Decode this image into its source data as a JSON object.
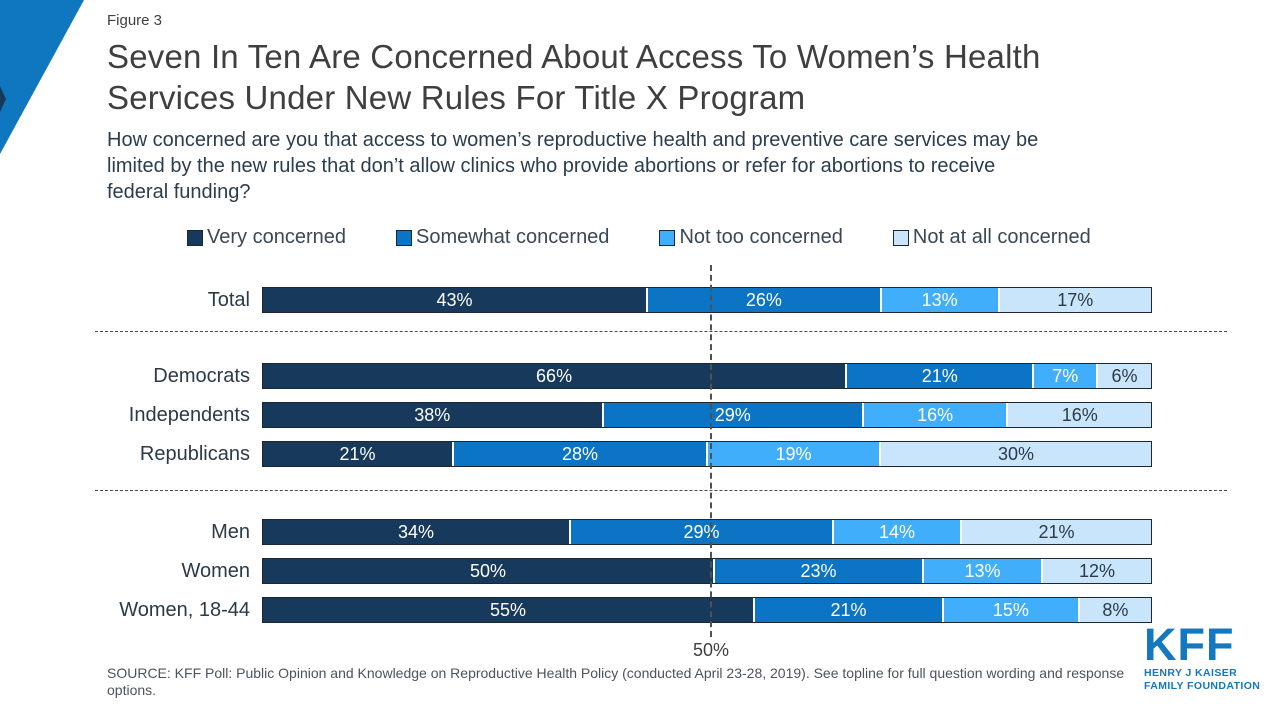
{
  "figure_label": "Figure 3",
  "header": {
    "title_lines": [
      "Seven In Ten Are Concerned About Access To Women’s Health",
      "Services Under New Rules For Title X Program"
    ],
    "subtitle_lines": [
      "How concerned are you that access to women’s reproductive health and preventive care services may be",
      "limited by the new rules that don’t allow clinics who provide abortions or refer for abortions to receive",
      "federal funding?"
    ]
  },
  "chart_data": {
    "type": "bar",
    "orientation": "horizontal_stacked",
    "xlim": [
      0,
      100
    ],
    "legend": [
      "Very concerned",
      "Somewhat concerned",
      "Not too concerned",
      "Not at all concerned"
    ],
    "series_colors": [
      "#17395C",
      "#0B74C4",
      "#41AEFC",
      "#C9E5FC"
    ],
    "categories": [
      "Total",
      "Democrats",
      "Independents",
      "Republicans",
      "Men",
      "Women",
      "Women, 18-44"
    ],
    "groups": [
      [
        "Total"
      ],
      [
        "Democrats",
        "Independents",
        "Republicans"
      ],
      [
        "Men",
        "Women",
        "Women, 18-44"
      ]
    ],
    "series": [
      {
        "name": "Very concerned",
        "values": [
          43,
          66,
          38,
          21,
          34,
          50,
          55
        ]
      },
      {
        "name": "Somewhat concerned",
        "values": [
          26,
          21,
          29,
          28,
          29,
          23,
          21
        ]
      },
      {
        "name": "Not too concerned",
        "values": [
          13,
          7,
          16,
          19,
          14,
          13,
          15
        ]
      },
      {
        "name": "Not at all concerned",
        "values": [
          17,
          6,
          16,
          30,
          21,
          12,
          8
        ]
      }
    ],
    "value_suffix": "%",
    "reference_line": {
      "value": 50,
      "label": "50%"
    },
    "grid": "off",
    "legend_position": "top"
  },
  "source_text": "SOURCE: KFF Poll: Public Opinion and Knowledge on Reproductive Health Policy (conducted April 23-28, 2019). See topline for full question wording and response options.",
  "logo": {
    "acronym": "KFF",
    "line1": "HENRY J KAISER",
    "line2": "FAMILY FOUNDATION"
  },
  "colors": {
    "logo_blue": "#1478BF",
    "corner_triangle_blue": "#0F76C0",
    "corner_triangle_navy": "#17395C",
    "label_on_light_segment": "#2D3A46",
    "label_on_dark_segment": "#FFFFFF"
  }
}
